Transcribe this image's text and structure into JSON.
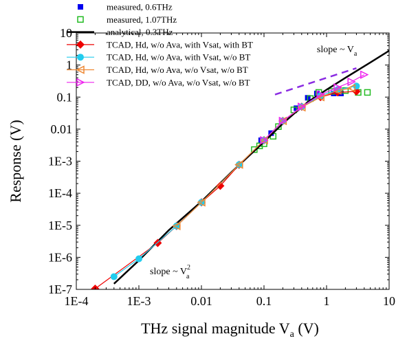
{
  "chart_data": {
    "type": "scatter",
    "xlabel": "THz signal magnitude V",
    "xlabel_sub": "a",
    "xlabel_unit": "(V)",
    "ylabel": "Response (V)",
    "xscale": "log",
    "yscale": "log",
    "xlim": [
      0.0001,
      10
    ],
    "ylim": [
      1e-07,
      10
    ],
    "x_ticks": [
      {
        "value": 0.0001,
        "label": "1E-4"
      },
      {
        "value": 0.001,
        "label": "1E-3"
      },
      {
        "value": 0.01,
        "label": "0.01"
      },
      {
        "value": 0.1,
        "label": "0.1"
      },
      {
        "value": 1,
        "label": "1"
      },
      {
        "value": 10,
        "label": "10"
      }
    ],
    "y_ticks": [
      {
        "value": 1e-07,
        "label": "1E-7"
      },
      {
        "value": 1e-06,
        "label": "1E-6"
      },
      {
        "value": 1e-05,
        "label": "1E-5"
      },
      {
        "value": 0.0001,
        "label": "1E-4"
      },
      {
        "value": 0.001,
        "label": "1E-3"
      },
      {
        "value": 0.01,
        "label": "0.01"
      },
      {
        "value": 0.1,
        "label": "0.1"
      },
      {
        "value": 1,
        "label": "1"
      },
      {
        "value": 10,
        "label": "10"
      }
    ],
    "grid": false,
    "legend_position": "top-left",
    "series": [
      {
        "name": "measured, 0.6THz",
        "kind": "marker",
        "marker": "square-filled",
        "color": "#0000ee",
        "x": [
          0.09,
          0.13,
          0.33,
          0.5,
          0.7,
          1.3,
          1.7
        ],
        "y": [
          0.0045,
          0.0075,
          0.045,
          0.095,
          0.13,
          0.13,
          0.13
        ]
      },
      {
        "name": "measured, 1.07THz",
        "kind": "marker",
        "marker": "square-open",
        "color": "#22bb22",
        "x": [
          0.07,
          0.085,
          0.1,
          0.14,
          0.17,
          0.3,
          0.55,
          0.75,
          1.2,
          2,
          3.2,
          4.5
        ],
        "y": [
          0.0023,
          0.003,
          0.0035,
          0.006,
          0.012,
          0.04,
          0.09,
          0.14,
          0.15,
          0.16,
          0.14,
          0.14
        ]
      },
      {
        "name": "analytical, 0.3THz",
        "kind": "line",
        "color": "#000000",
        "x": [
          0.0004,
          0.001,
          0.003,
          0.01,
          0.03,
          0.1,
          0.2,
          0.3,
          0.5,
          1,
          2,
          5,
          10
        ],
        "y": [
          1.5e-07,
          8e-07,
          7e-06,
          5.5e-05,
          0.00045,
          0.004,
          0.015,
          0.03,
          0.07,
          0.17,
          0.4,
          1.2,
          2.8
        ]
      },
      {
        "name": "TCAD, Hd, w/o Ava, with Vsat, with BT",
        "kind": "line-marker",
        "marker": "diamond",
        "color": "#ee0000",
        "x": [
          0.0002,
          0.002,
          0.004,
          0.01,
          0.02,
          0.04,
          0.1,
          0.2,
          0.4,
          0.8,
          1.5,
          3
        ],
        "y": [
          1.05e-07,
          2.8e-06,
          9.5e-06,
          5.2e-05,
          0.00017,
          0.00077,
          0.0045,
          0.018,
          0.05,
          0.1,
          0.14,
          0.15
        ]
      },
      {
        "name": "TCAD, Hd, w/o Ava, with Vsat, w/o BT",
        "kind": "line-marker",
        "marker": "circle",
        "color": "#22ccee",
        "x": [
          0.0004,
          0.001,
          0.004,
          0.01,
          0.04,
          0.1,
          0.2,
          0.4,
          0.8,
          1.5,
          3
        ],
        "y": [
          2.5e-07,
          9e-07,
          9.5e-06,
          5.2e-05,
          0.00078,
          0.0045,
          0.018,
          0.05,
          0.11,
          0.17,
          0.22
        ]
      },
      {
        "name": "TCAD, Hd, w/o Ava, w/o Vsat, w/o BT",
        "kind": "line-marker",
        "marker": "triangle-left-open",
        "color": "#ee8833",
        "x": [
          0.004,
          0.01,
          0.04,
          0.1,
          0.2,
          0.4,
          0.8,
          1.5,
          2.5
        ],
        "y": [
          9.5e-06,
          5.2e-05,
          0.00078,
          0.0045,
          0.018,
          0.048,
          0.1,
          0.16,
          0.19
        ]
      },
      {
        "name": "TCAD, DD, w/o Ava, w/o Vsat, w/o BT",
        "kind": "line-marker",
        "marker": "triangle-right-open",
        "color": "#ee22ee",
        "x": [
          0.1,
          0.2,
          0.4,
          0.8,
          1.5,
          2.5,
          4
        ],
        "y": [
          0.0045,
          0.018,
          0.05,
          0.12,
          0.2,
          0.3,
          0.5
        ]
      }
    ],
    "annotations": [
      {
        "kind": "dashed-line",
        "color": "#8a2be2",
        "x": [
          0.15,
          3
        ],
        "y": [
          0.12,
          0.8
        ]
      },
      {
        "kind": "label",
        "text": "slope ~ V",
        "sub": "a",
        "x": 0.7,
        "y": 2.5
      },
      {
        "kind": "label",
        "text": "slope ~ V",
        "sub": "a",
        "sup": "2",
        "x": 0.0015,
        "y": 3e-07
      }
    ]
  }
}
